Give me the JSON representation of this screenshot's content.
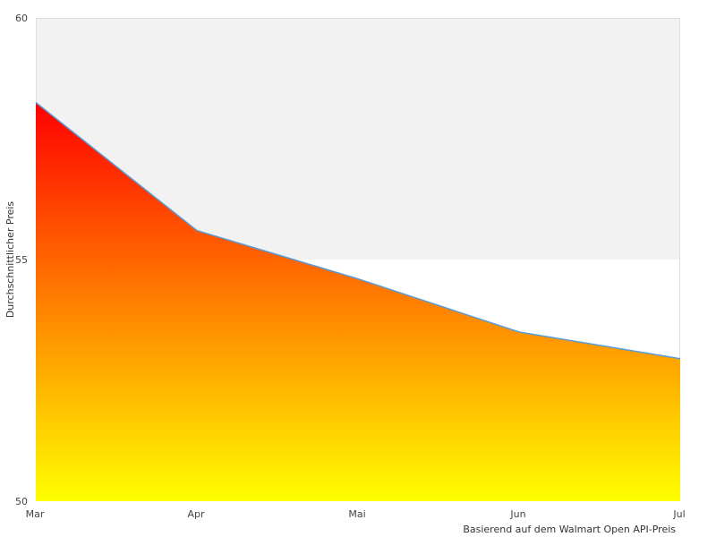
{
  "chart_data": {
    "type": "area",
    "categories": [
      "Mar",
      "Apr",
      "Mai",
      "Jun",
      "Jul"
    ],
    "series": [
      {
        "values": [
          58.25,
          55.6,
          54.6,
          53.5,
          52.95
        ]
      }
    ],
    "ylabel": "Durchschnittlicher Preis",
    "xlabel": "",
    "ylim": [
      50,
      60
    ],
    "yticks": [
      50,
      55,
      60
    ],
    "caption": "Basierend auf dem Walmart Open API-Preis",
    "grid": false,
    "plot_bands": [
      {
        "from": 55,
        "to": 60,
        "color": "#f2f2f2"
      }
    ],
    "colors": {
      "line": "#5b9bd5",
      "fill_top": "#ff0000",
      "fill_bottom": "#ffff00",
      "plot_border": "#dddddd"
    }
  }
}
